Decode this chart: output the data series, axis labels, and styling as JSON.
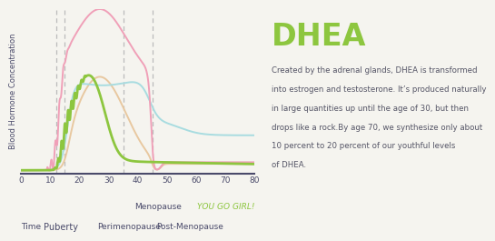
{
  "title": "DHEA",
  "title_color": "#8dc63f",
  "description_lines": [
    "Created by the adrenal glands, DHEA is transformed",
    "into estrogen and testosterone. It’s produced naturally",
    "in large quantities up until the age of 30, but then",
    "drops like a rock.By age 70, we synthesize only about",
    "10 percent to 20 percent of our youthful levels",
    "of DHEA."
  ],
  "description_color": "#555566",
  "background_color": "#f5f4ef",
  "ylabel": "Blood Hormone Concentration",
  "ylabel_color": "#4a4a6a",
  "xlim": [
    0,
    80
  ],
  "ylim": [
    0,
    1.0
  ],
  "xticks": [
    0,
    10,
    20,
    30,
    40,
    50,
    60,
    70,
    80
  ],
  "xtick_color": "#4a4a6a",
  "vlines": [
    12,
    15,
    35,
    45
  ],
  "vline_color": "#bbbbbb",
  "estrogen_color": "#f0a0b8",
  "progesterone_color": "#e8c8a0",
  "dhea_color": "#8dc63f",
  "testosterone_color": "#a8dce0",
  "axis_color": "#4a4a6a",
  "label_color": "#4a4a6a",
  "yougo_color": "#8dc63f"
}
